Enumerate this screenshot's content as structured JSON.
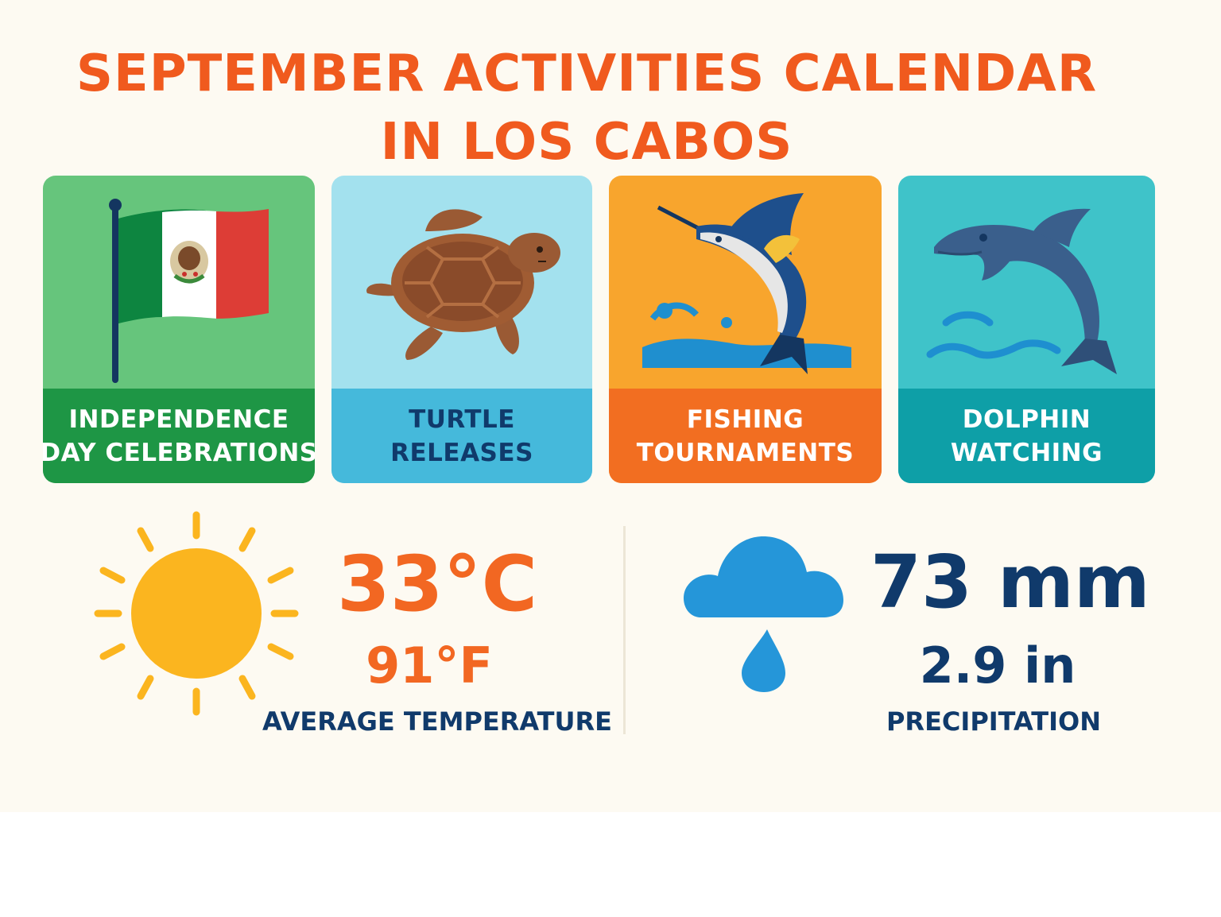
{
  "title": {
    "line1": "SEPTEMBER ACTIVITIES CALENDAR",
    "line2": "IN LOS CABOS"
  },
  "colors": {
    "background": "#fdfaf2",
    "title": "#f05a1e",
    "navy": "#103a6b",
    "orange": "#f26722"
  },
  "activities": [
    {
      "icon": "mexican-flag-icon",
      "line1": "INDEPENDENCE",
      "line2": "DAY CELEBRATIONS",
      "bg": "#66c57c",
      "band": "#1e9645",
      "text": "#ffffff"
    },
    {
      "icon": "sea-turtle-icon",
      "line1": "TURTLE",
      "line2": "RELEASES",
      "bg": "#a3e1ee",
      "band": "#45b9db",
      "text": "#103a6b"
    },
    {
      "icon": "marlin-icon",
      "line1": "FISHING",
      "line2": "TOURNAMENTS",
      "bg": "#f8a52d",
      "band": "#f26e21",
      "text": "#ffffff"
    },
    {
      "icon": "dolphin-icon",
      "line1": "DOLPHIN",
      "line2": "WATCHING",
      "bg": "#3fc3c9",
      "band": "#0e9fa7",
      "text": "#ffffff"
    }
  ],
  "temperature": {
    "icon": "sun-icon",
    "celsius": "33°C",
    "fahrenheit": "91°F",
    "label": "AVERAGE TEMPERATURE"
  },
  "precipitation": {
    "icon": "rain-cloud-icon",
    "mm": "73 mm",
    "inches": "2.9 in",
    "label": "PRECIPITATION"
  }
}
